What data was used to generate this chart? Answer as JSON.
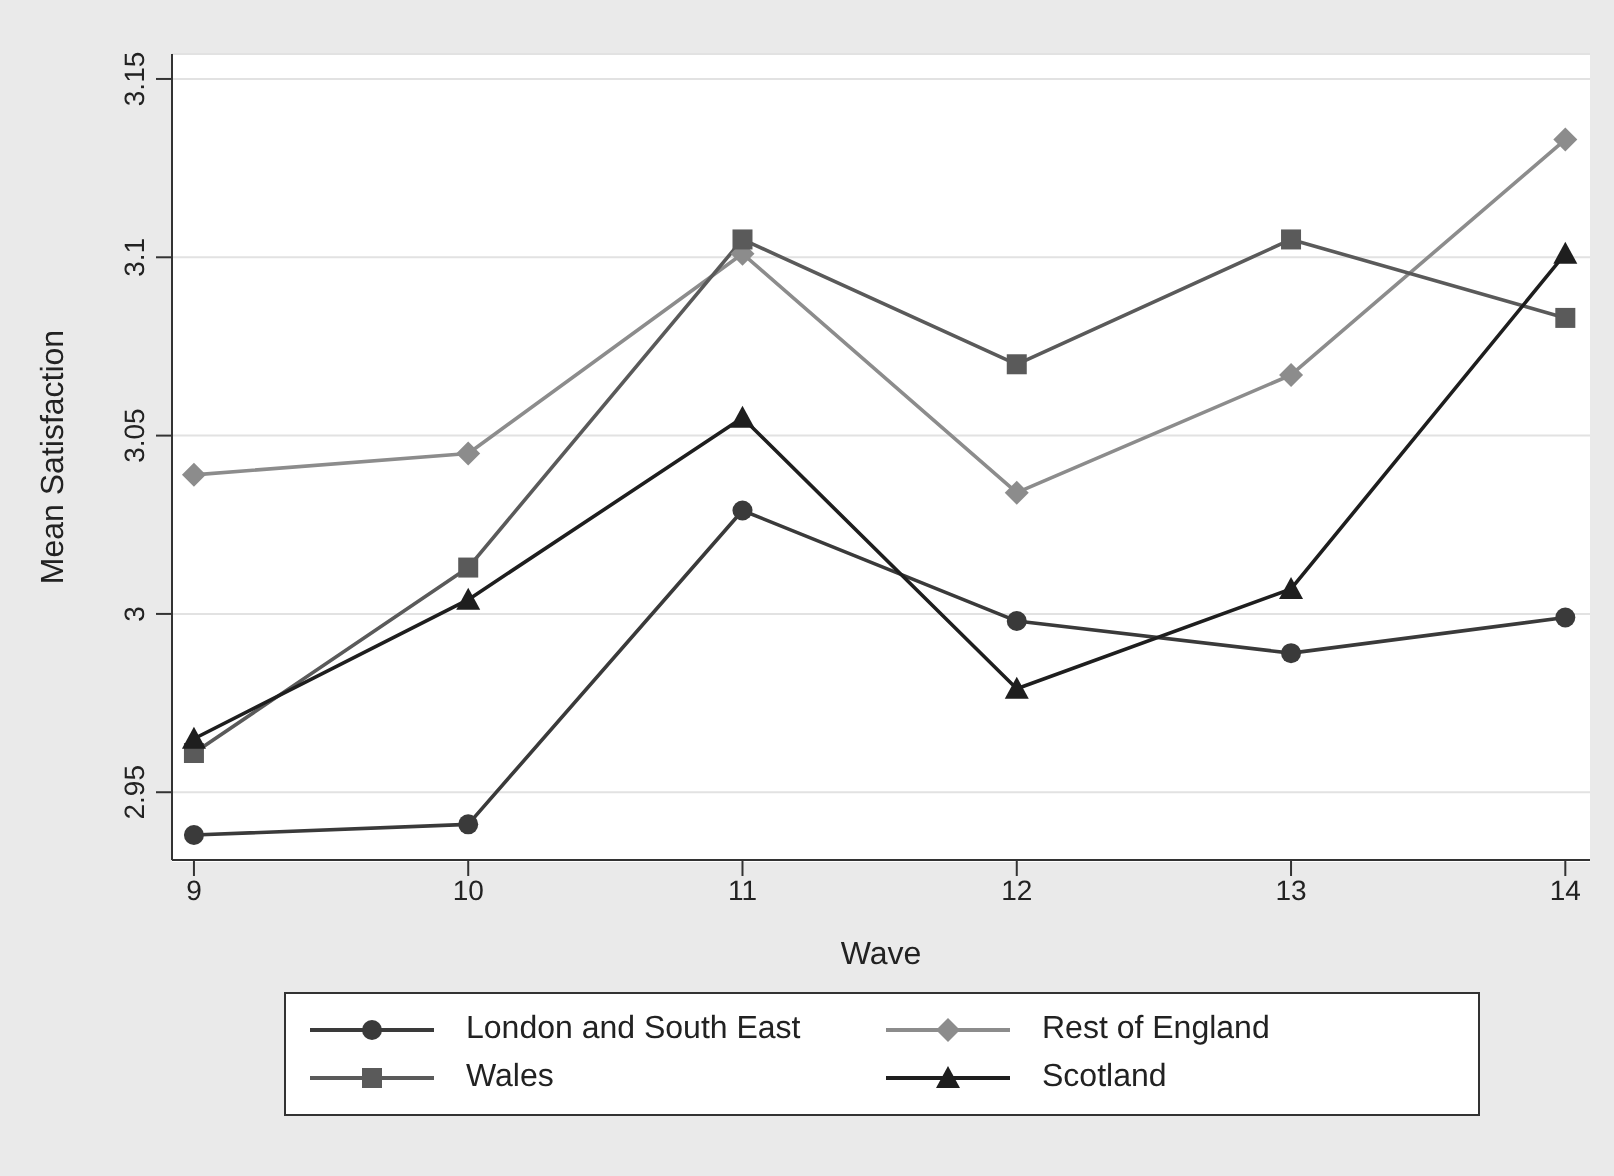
{
  "chart_data": {
    "type": "line",
    "xlabel": "Wave",
    "ylabel": "Mean Satisfaction",
    "x": [
      9,
      10,
      11,
      12,
      13,
      14
    ],
    "xlim": [
      8.92,
      14.09
    ],
    "xticks": [
      9,
      10,
      11,
      12,
      13,
      14
    ],
    "ylim": [
      2.931,
      3.157
    ],
    "yticks": [
      2.95,
      3,
      3.05,
      3.1,
      3.15
    ],
    "grid": "y",
    "legend": "bottom",
    "line_style": "solid",
    "series": [
      {
        "name": "London and South East",
        "color": "#3a3a3a",
        "marker": "circle",
        "values": [
          2.938,
          2.941,
          3.029,
          2.998,
          2.989,
          2.999
        ]
      },
      {
        "name": "Rest of England",
        "color": "#8c8c8c",
        "marker": "diamond",
        "values": [
          3.039,
          3.045,
          3.101,
          3.034,
          3.067,
          3.133
        ]
      },
      {
        "name": "Wales",
        "color": "#5a5a5a",
        "marker": "square",
        "values": [
          2.961,
          3.013,
          3.105,
          3.07,
          3.105,
          3.083
        ]
      },
      {
        "name": "Scotland",
        "color": "#1e1e1e",
        "marker": "triangle",
        "values": [
          2.965,
          3.004,
          3.055,
          2.979,
          3.007,
          3.101
        ]
      }
    ]
  }
}
